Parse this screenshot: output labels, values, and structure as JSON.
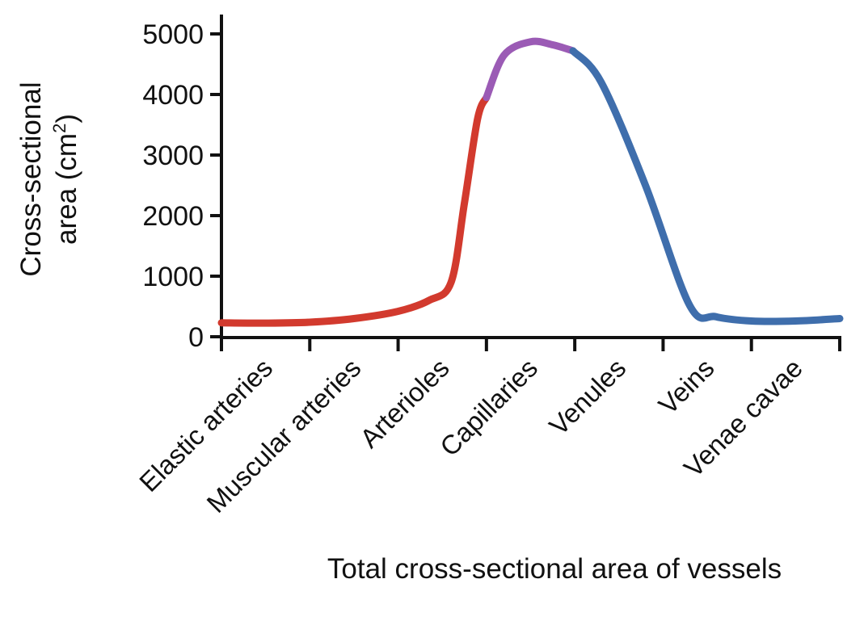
{
  "chart_data": {
    "type": "line",
    "title": "",
    "xlabel": "Total cross-sectional area of vessels",
    "ylabel_lines": [
      "Cross-sectional",
      "area (cm"
    ],
    "ylabel_superscript": "2",
    "ylabel_close": ")",
    "ylim": [
      0,
      5000
    ],
    "y_ticks": [
      "0",
      "1000",
      "2000",
      "3000",
      "4000",
      "5000"
    ],
    "y_tick_values": [
      0,
      1000,
      2000,
      3000,
      4000,
      5000
    ],
    "categories": [
      "Elastic arteries",
      "Muscular arteries",
      "Arterioles",
      "Capillaries",
      "Venules",
      "Veins",
      "Venae cavae"
    ],
    "grid": false,
    "legend": "none",
    "series": [
      {
        "segment": "arterial",
        "color": "#d23a2e",
        "points": [
          [
            0,
            230
          ],
          [
            0.5,
            225
          ],
          [
            1,
            240
          ],
          [
            1.5,
            300
          ],
          [
            2,
            420
          ],
          [
            2.35,
            600
          ],
          [
            2.6,
            900
          ],
          [
            2.75,
            2200
          ],
          [
            2.9,
            3600
          ],
          [
            3.0,
            3950
          ]
        ]
      },
      {
        "segment": "capillary",
        "color": "#9b5bb5",
        "points": [
          [
            3.0,
            3950
          ],
          [
            3.2,
            4650
          ],
          [
            3.5,
            4870
          ],
          [
            3.75,
            4820
          ],
          [
            3.98,
            4720
          ]
        ]
      },
      {
        "segment": "venous",
        "color": "#3f6eac",
        "points": [
          [
            3.98,
            4720
          ],
          [
            4.3,
            4200
          ],
          [
            4.8,
            2500
          ],
          [
            5.3,
            520
          ],
          [
            5.6,
            330
          ],
          [
            6.0,
            260
          ],
          [
            6.5,
            260
          ],
          [
            7.0,
            300
          ]
        ]
      }
    ]
  }
}
